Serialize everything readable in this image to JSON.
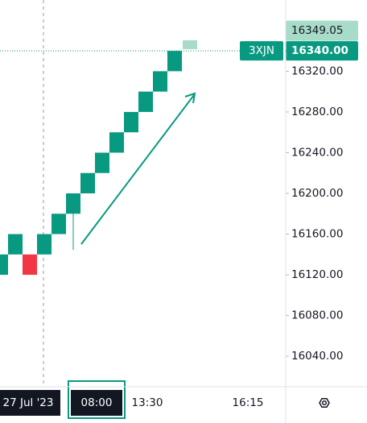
{
  "chart_data": {
    "type": "renko",
    "symbol_tag": "3XJN",
    "bricks": [
      {
        "open": 16120,
        "close": 16140
      },
      {
        "open": 16140,
        "close": 16160
      },
      {
        "open": 16140,
        "close": 16120
      },
      {
        "open": 16140,
        "close": 16160
      },
      {
        "open": 16160,
        "close": 16180
      },
      {
        "open": 16180,
        "close": 16200
      },
      {
        "open": 16200,
        "close": 16220
      },
      {
        "open": 16220,
        "close": 16240
      },
      {
        "open": 16240,
        "close": 16260
      },
      {
        "open": 16260,
        "close": 16280
      },
      {
        "open": 16280,
        "close": 16300
      },
      {
        "open": 16300,
        "close": 16320
      },
      {
        "open": 16320,
        "close": 16340
      }
    ],
    "up_color": "#089981",
    "down_color": "#f23645",
    "last_price": {
      "value": 16340,
      "label": "16340.00"
    },
    "high_price": {
      "value": 16349.05,
      "label": "16349.05"
    },
    "ylim": [
      16010,
      16390
    ],
    "yticks": [
      {
        "value": 16320,
        "label": "16320.00"
      },
      {
        "value": 16280,
        "label": "16280.00"
      },
      {
        "value": 16240,
        "label": "16240.00"
      },
      {
        "value": 16200,
        "label": "16200.00"
      },
      {
        "value": 16160,
        "label": "16160.00"
      },
      {
        "value": 16120,
        "label": "16120.00"
      },
      {
        "value": 16080,
        "label": "16080.00"
      },
      {
        "value": 16040,
        "label": "16040.00"
      }
    ],
    "xlabels": [
      "27 Jul '23",
      "08:00",
      "13:30",
      "16:15"
    ]
  }
}
